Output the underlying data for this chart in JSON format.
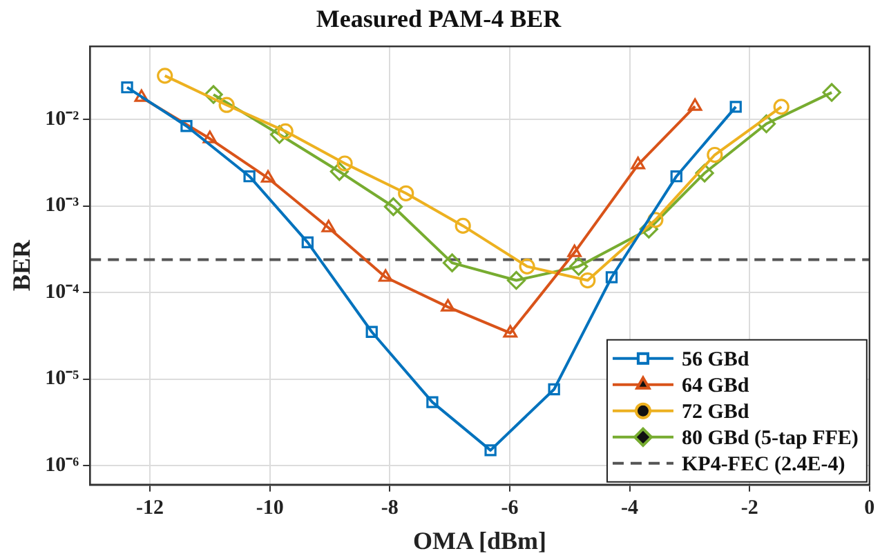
{
  "chart_data": {
    "type": "line",
    "title": "Measured PAM-4 BER",
    "xlabel": "OMA [dBm]",
    "ylabel": "BER",
    "log": "y",
    "xlim": [
      -13,
      0
    ],
    "xticks": [
      -12,
      -10,
      -8,
      -6,
      -4,
      -2,
      0
    ],
    "ylim": [
      6e-07,
      0.07
    ],
    "yticks": [
      {
        "value": 1e-06,
        "label": "10⁻⁶"
      },
      {
        "value": 1e-05,
        "label": "10⁻⁵"
      },
      {
        "value": 0.0001,
        "label": "10⁻⁴"
      },
      {
        "value": 0.001,
        "label": "10⁻³"
      },
      {
        "value": 0.01,
        "label": "10⁻²"
      }
    ],
    "grid": true,
    "legend": "bottom right",
    "line_style": "solid",
    "series": [
      {
        "name": "56 GBd",
        "color": "#0072bd",
        "marker": "square",
        "x": [
          -12.38,
          -11.39,
          -10.34,
          -9.37,
          -8.3,
          -7.29,
          -6.32,
          -5.26,
          -4.3,
          -3.22,
          -2.23
        ],
        "values": [
          0.0235,
          0.0084,
          0.0022,
          0.00038,
          3.5e-05,
          5.4e-06,
          1.5e-06,
          7.6e-06,
          0.00015,
          0.0022,
          0.014
        ]
      },
      {
        "name": "64 GBd",
        "color": "#d95319",
        "marker": "triangle",
        "x": [
          -12.14,
          -11.0,
          -10.03,
          -9.02,
          -8.07,
          -7.03,
          -5.99,
          -4.92,
          -3.86,
          -2.91
        ],
        "values": [
          0.018,
          0.006,
          0.0021,
          0.00056,
          0.00015,
          6.8e-05,
          3.4e-05,
          0.00029,
          0.003,
          0.0142
        ]
      },
      {
        "name": "72 GBd",
        "color": "#edb120",
        "marker": "circle",
        "x": [
          -11.75,
          -10.72,
          -9.74,
          -8.75,
          -7.73,
          -6.78,
          -5.71,
          -4.7,
          -3.57,
          -2.58,
          -1.47
        ],
        "values": [
          0.032,
          0.0147,
          0.0073,
          0.0031,
          0.0014,
          0.00059,
          0.0002,
          0.000138,
          0.00069,
          0.0039,
          0.014
        ]
      },
      {
        "name": "80 GBd (5-tap FFE)",
        "color": "#77ac30",
        "marker": "diamond",
        "x": [
          -10.94,
          -9.84,
          -8.84,
          -7.94,
          -6.96,
          -5.89,
          -4.85,
          -3.68,
          -2.75,
          -1.72,
          -0.63
        ],
        "values": [
          0.0194,
          0.0067,
          0.0025,
          0.00098,
          0.00022,
          0.000138,
          0.0002,
          0.00054,
          0.0024,
          0.0089,
          0.0205
        ]
      }
    ],
    "ref_lines": [
      {
        "axis": "y",
        "value": 0.00024,
        "label": "KP4-FEC (2.4E-4)",
        "color": "#555555",
        "line_style": "dashed"
      }
    ]
  }
}
